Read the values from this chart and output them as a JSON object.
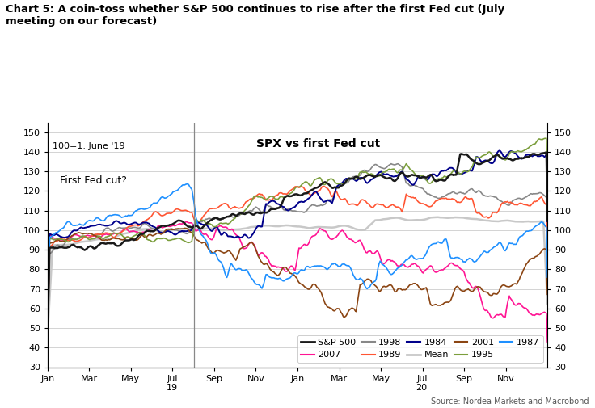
{
  "title": "Chart 5: A coin-toss whether S&P 500 continues to rise after the first Fed cut (July\nmeeting on our forecast)",
  "subtitle": "SPX vs first Fed cut",
  "annotation_left": "100=1. June '19",
  "annotation_fed": "First Fed cut?",
  "source": "Source: Nordea Markets and Macrobond",
  "ylim": [
    30,
    155
  ],
  "yticks": [
    30,
    40,
    50,
    60,
    70,
    80,
    90,
    100,
    110,
    120,
    130,
    140,
    150
  ],
  "series_colors": {
    "sp500": "#1a1a1a",
    "2007": "#FF1493",
    "1998": "#888888",
    "1989": "#FF5533",
    "1984": "#00008B",
    "mean": "#C8C8C8",
    "2001": "#8B4513",
    "1995": "#7B9E3C",
    "1987": "#1E90FF"
  },
  "xtick_labels": [
    "Jan",
    "Mar",
    "May",
    "Jul",
    "Sep",
    "Nov",
    "Jan",
    "Mar",
    "May",
    "Jul",
    "Sep",
    "Nov"
  ],
  "n_points": 500
}
